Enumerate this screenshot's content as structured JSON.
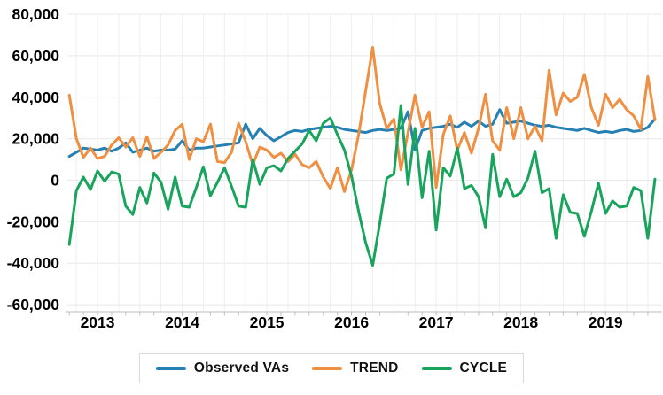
{
  "chart_data": {
    "type": "line",
    "title": "",
    "xlabel": "",
    "ylabel": "",
    "grid": true,
    "legend_position": "bottom",
    "ylim": [
      -60000,
      80000
    ],
    "y_tick_step": 20000,
    "y_tick_labels": [
      "80,000",
      "60,000",
      "40,000",
      "20,000",
      "0",
      "-20,000",
      "-40,000",
      "-60,000"
    ],
    "y_tick_values": [
      80000,
      60000,
      40000,
      20000,
      0,
      -20000,
      -40000,
      -60000
    ],
    "x_year_labels": [
      "2013",
      "2014",
      "2015",
      "2016",
      "2017",
      "2018",
      "2019"
    ],
    "months": [
      "Sep-12",
      "Oct-12",
      "Nov-12",
      "Dec-12",
      "Jan-13",
      "Feb-13",
      "Mar-13",
      "Apr-13",
      "May-13",
      "Jun-13",
      "Jul-13",
      "Aug-13",
      "Sep-13",
      "Oct-13",
      "Nov-13",
      "Dec-13",
      "Jan-14",
      "Feb-14",
      "Mar-14",
      "Apr-14",
      "May-14",
      "Jun-14",
      "Jul-14",
      "Aug-14",
      "Sep-14",
      "Oct-14",
      "Nov-14",
      "Dec-14",
      "Jan-15",
      "Feb-15",
      "Mar-15",
      "Apr-15",
      "May-15",
      "Jun-15",
      "Jul-15",
      "Aug-15",
      "Sep-15",
      "Oct-15",
      "Nov-15",
      "Dec-15",
      "Jan-16",
      "Feb-16",
      "Mar-16",
      "Apr-16",
      "May-16",
      "Jun-16",
      "Jul-16",
      "Aug-16",
      "Sep-16",
      "Oct-16",
      "Nov-16",
      "Dec-16",
      "Jan-17",
      "Feb-17",
      "Mar-17",
      "Apr-17",
      "May-17",
      "Jun-17",
      "Jul-17",
      "Aug-17",
      "Sep-17",
      "Oct-17",
      "Nov-17",
      "Dec-17",
      "Jan-18",
      "Feb-18",
      "Mar-18",
      "Apr-18",
      "May-18",
      "Jun-18",
      "Jul-18",
      "Aug-18",
      "Sep-18",
      "Oct-18",
      "Nov-18",
      "Dec-18",
      "Jan-19",
      "Feb-19",
      "Mar-19",
      "Apr-19",
      "May-19",
      "Jun-19",
      "Jul-19",
      "Aug-19"
    ],
    "series": [
      {
        "name": "Observed VAs",
        "color": "#2580B4",
        "values": [
          11500,
          13500,
          15500,
          15000,
          14500,
          15500,
          14000,
          15500,
          18000,
          13500,
          14500,
          15500,
          14000,
          14500,
          14500,
          15000,
          19000,
          14500,
          15500,
          15500,
          16000,
          16500,
          17000,
          17500,
          18000,
          27000,
          20000,
          25000,
          21500,
          19000,
          21000,
          23000,
          24000,
          23500,
          24500,
          25000,
          25500,
          26000,
          25500,
          24500,
          24000,
          23500,
          23000,
          24000,
          24500,
          24000,
          24500,
          25000,
          33000,
          14500,
          24000,
          25000,
          25500,
          26000,
          27000,
          25500,
          28000,
          26000,
          28500,
          26000,
          27000,
          34000,
          27500,
          28000,
          28500,
          27500,
          26500,
          26000,
          26500,
          25500,
          25000,
          24500,
          24000,
          25000,
          24000,
          23000,
          23500,
          23000,
          24000,
          24500,
          23500,
          24000,
          25500,
          29500
        ]
      },
      {
        "name": "TREND",
        "color": "#EE8F41",
        "values": [
          41000,
          20000,
          11000,
          15500,
          10500,
          11500,
          17000,
          20500,
          16000,
          20500,
          11500,
          21000,
          10500,
          13500,
          17000,
          24000,
          27000,
          10000,
          20000,
          18500,
          27000,
          9000,
          8500,
          13500,
          27500,
          18500,
          7500,
          16000,
          14500,
          11000,
          13000,
          9000,
          12500,
          7500,
          6000,
          9000,
          1500,
          -4000,
          6000,
          -5500,
          5000,
          22000,
          43000,
          64000,
          37000,
          25000,
          29500,
          5000,
          23000,
          41000,
          25500,
          33000,
          -3500,
          22000,
          31000,
          14500,
          23000,
          13000,
          25000,
          41500,
          19000,
          14500,
          35000,
          20000,
          35000,
          20000,
          26000,
          19000,
          53000,
          31500,
          42000,
          38000,
          40000,
          51000,
          35000,
          26500,
          41500,
          35000,
          39000,
          34000,
          31000,
          24500,
          50000,
          29000
        ]
      },
      {
        "name": "CYCLE",
        "color": "#18A45C",
        "values": [
          -31000,
          -5000,
          1500,
          -4500,
          4500,
          -500,
          4000,
          3000,
          -12500,
          -16500,
          -3500,
          -11000,
          3500,
          -1000,
          -14000,
          1500,
          -12500,
          -13000,
          -3500,
          6500,
          -7500,
          -1000,
          6000,
          -3000,
          -12500,
          -13000,
          10000,
          -2000,
          6000,
          7000,
          4500,
          10500,
          14000,
          17500,
          24000,
          19000,
          27500,
          30000,
          22000,
          14500,
          2000,
          -15000,
          -30000,
          -41000,
          -21000,
          1000,
          3000,
          36000,
          -2000,
          25000,
          -8500,
          14000,
          -24000,
          6000,
          2000,
          15500,
          -4000,
          -2500,
          -8000,
          -23000,
          12500,
          -8000,
          500,
          -8000,
          -6000,
          1000,
          14000,
          -6000,
          -4000,
          -28000,
          -7000,
          -15500,
          -16000,
          -27000,
          -15000,
          -1500,
          -16000,
          -10000,
          -13000,
          -12500,
          -3500,
          -5000,
          -28000,
          500
        ]
      }
    ]
  },
  "style_colors": {
    "gridline": "#E8E8E8",
    "axis_line": "#C9C9C9",
    "tick_mark": "#BFBFBF",
    "label_text": "#000000"
  }
}
